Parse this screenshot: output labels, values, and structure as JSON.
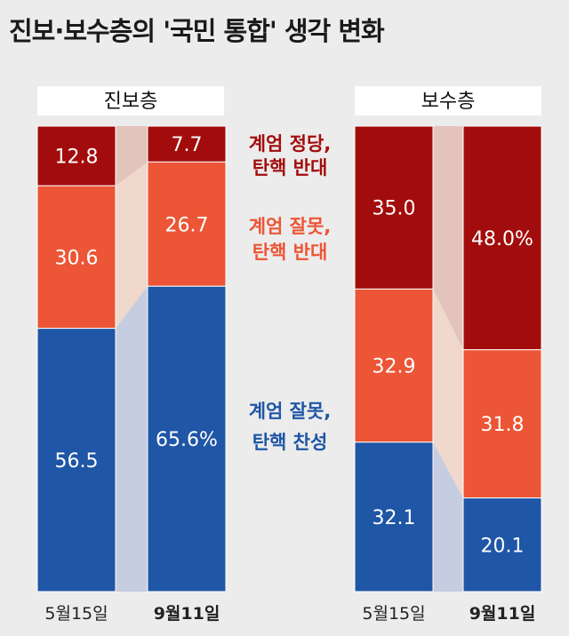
{
  "title": "진보·보수층의 '국민 통합' 생각 변화",
  "chart_data": {
    "type": "bar",
    "stacked": true,
    "unit": "%",
    "groups": [
      {
        "name": "진보층",
        "bars": [
          {
            "date": "5월15일",
            "values": [
              12.8,
              30.6,
              56.5
            ],
            "labels": [
              "12.8",
              "30.6",
              "56.5"
            ]
          },
          {
            "date": "9월11일",
            "values": [
              7.7,
              26.7,
              65.6
            ],
            "labels": [
              "7.7",
              "26.7",
              "65.6%"
            ]
          }
        ]
      },
      {
        "name": "보수층",
        "bars": [
          {
            "date": "5월15일",
            "values": [
              35.0,
              32.9,
              32.1
            ],
            "labels": [
              "35.0",
              "32.9",
              "32.1"
            ]
          },
          {
            "date": "9월11일",
            "values": [
              48.0,
              31.8,
              20.1
            ],
            "labels": [
              "48.0%",
              "31.8",
              "20.1"
            ]
          }
        ]
      }
    ],
    "series": [
      {
        "name": "계엄 정당, 탄핵 반대",
        "lines": [
          "계엄 정당,",
          "탄핵 반대"
        ],
        "color": "#a30c0c",
        "text_color": "#a30c0c",
        "band_color": "#e3c4bc"
      },
      {
        "name": "계엄 잘못, 탄핵 반대",
        "lines": [
          "계엄 잘못,",
          "탄핵 반대"
        ],
        "color": "#ec5535",
        "text_color": "#ec5535",
        "band_color": "#f0d8cc"
      },
      {
        "name": "계엄 잘못, 탄핵 찬성",
        "lines": [
          "계엄 잘못,",
          "탄핵 찬성"
        ],
        "color": "#1f56a6",
        "text_color": "#1f56a6",
        "band_color": "#c7cde0"
      }
    ],
    "ylim": [
      0,
      100
    ]
  }
}
